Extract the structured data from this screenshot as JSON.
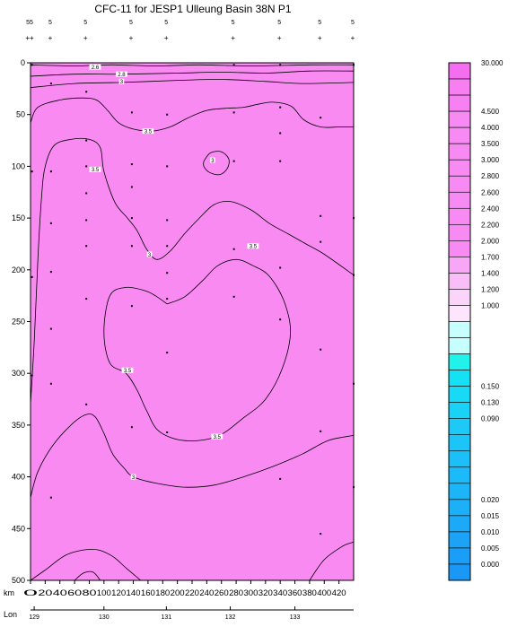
{
  "chart_data": {
    "type": "contour",
    "title": "CFC-11 for JESP1 Ulleung Basin 38N P1",
    "x_axis": {
      "label_km": "km",
      "label_lon": "Lon",
      "range": [
        0,
        440
      ],
      "ticks": [
        0,
        20,
        40,
        60,
        80,
        100,
        120,
        140,
        160,
        180,
        200,
        220,
        240,
        260,
        280,
        300,
        320,
        340,
        360,
        380,
        400,
        420
      ]
    },
    "lon_ticks": [
      {
        "km": 5,
        "label": "129"
      },
      {
        "km": 100,
        "label": "130"
      },
      {
        "km": 185,
        "label": "131"
      },
      {
        "km": 272,
        "label": "132"
      },
      {
        "km": 360,
        "label": "133"
      }
    ],
    "y_axis": {
      "range": [
        0,
        500
      ],
      "ticks": [
        0,
        50,
        100,
        150,
        200,
        250,
        300,
        350,
        400,
        450,
        500
      ],
      "inverted": true
    },
    "station_labels": [
      {
        "km": 0,
        "label": "55"
      },
      {
        "km": 28,
        "label": "5"
      },
      {
        "km": 76,
        "label": "5"
      },
      {
        "km": 138,
        "label": "5"
      },
      {
        "km": 186,
        "label": "5"
      },
      {
        "km": 277,
        "label": "5"
      },
      {
        "km": 340,
        "label": "5"
      },
      {
        "km": 395,
        "label": "5"
      },
      {
        "km": 440,
        "label": "5"
      }
    ],
    "contour_labels": [
      {
        "km": 88,
        "depth": 4,
        "label": "2.6"
      },
      {
        "km": 124,
        "depth": 11,
        "label": "2.8"
      },
      {
        "km": 124,
        "depth": 18,
        "label": "3"
      },
      {
        "km": 160,
        "depth": 66,
        "label": "3.5"
      },
      {
        "km": 88,
        "depth": 103,
        "label": "3.5"
      },
      {
        "km": 248,
        "depth": 94,
        "label": "3"
      },
      {
        "km": 162,
        "depth": 185,
        "label": "3"
      },
      {
        "km": 303,
        "depth": 177,
        "label": "3.5"
      },
      {
        "km": 132,
        "depth": 297,
        "label": "3.5"
      },
      {
        "km": 254,
        "depth": 361,
        "label": "3.5"
      },
      {
        "km": 140,
        "depth": 400,
        "label": "3"
      }
    ],
    "sample_points": [
      {
        "km": 2,
        "depth": 2
      },
      {
        "km": 2,
        "depth": 105
      },
      {
        "km": 2,
        "depth": 207
      },
      {
        "km": 2,
        "depth": 302
      },
      {
        "km": 28,
        "depth": 20
      },
      {
        "km": 28,
        "depth": 105
      },
      {
        "km": 28,
        "depth": 155
      },
      {
        "km": 28,
        "depth": 202
      },
      {
        "km": 28,
        "depth": 257
      },
      {
        "km": 28,
        "depth": 310
      },
      {
        "km": 28,
        "depth": 420
      },
      {
        "km": 76,
        "depth": 28
      },
      {
        "km": 76,
        "depth": 75
      },
      {
        "km": 76,
        "depth": 100
      },
      {
        "km": 76,
        "depth": 126
      },
      {
        "km": 76,
        "depth": 152
      },
      {
        "km": 76,
        "depth": 177
      },
      {
        "km": 76,
        "depth": 228
      },
      {
        "km": 76,
        "depth": 330
      },
      {
        "km": 138,
        "depth": 48
      },
      {
        "km": 138,
        "depth": 98
      },
      {
        "km": 138,
        "depth": 120
      },
      {
        "km": 138,
        "depth": 150
      },
      {
        "km": 138,
        "depth": 177
      },
      {
        "km": 138,
        "depth": 235
      },
      {
        "km": 138,
        "depth": 352
      },
      {
        "km": 186,
        "depth": 50
      },
      {
        "km": 186,
        "depth": 100
      },
      {
        "km": 186,
        "depth": 152
      },
      {
        "km": 186,
        "depth": 177
      },
      {
        "km": 186,
        "depth": 203
      },
      {
        "km": 186,
        "depth": 228
      },
      {
        "km": 186,
        "depth": 280
      },
      {
        "km": 186,
        "depth": 357
      },
      {
        "km": 277,
        "depth": 2
      },
      {
        "km": 277,
        "depth": 48
      },
      {
        "km": 277,
        "depth": 95
      },
      {
        "km": 277,
        "depth": 180
      },
      {
        "km": 277,
        "depth": 226
      },
      {
        "km": 340,
        "depth": 2
      },
      {
        "km": 340,
        "depth": 43
      },
      {
        "km": 340,
        "depth": 68
      },
      {
        "km": 340,
        "depth": 95
      },
      {
        "km": 340,
        "depth": 198
      },
      {
        "km": 340,
        "depth": 248
      },
      {
        "km": 340,
        "depth": 402
      },
      {
        "km": 395,
        "depth": 53
      },
      {
        "km": 395,
        "depth": 148
      },
      {
        "km": 395,
        "depth": 173
      },
      {
        "km": 395,
        "depth": 277
      },
      {
        "km": 395,
        "depth": 356
      },
      {
        "km": 395,
        "depth": 455
      },
      {
        "km": 440,
        "depth": 2
      },
      {
        "km": 440,
        "depth": 150
      },
      {
        "km": 440,
        "depth": 205
      },
      {
        "km": 440,
        "depth": 310
      },
      {
        "km": 440,
        "depth": 410
      }
    ],
    "contours": [
      {
        "level": "2.6",
        "points": [
          [
            0,
            2
          ],
          [
            60,
            3
          ],
          [
            110,
            2
          ],
          [
            170,
            3
          ],
          [
            230,
            2
          ],
          [
            300,
            3
          ],
          [
            380,
            2
          ],
          [
            440,
            2
          ]
        ]
      },
      {
        "level": "2.8",
        "points": [
          [
            0,
            13
          ],
          [
            60,
            11
          ],
          [
            124,
            11
          ],
          [
            200,
            10
          ],
          [
            260,
            9
          ],
          [
            320,
            10
          ],
          [
            380,
            8
          ],
          [
            440,
            8
          ]
        ]
      },
      {
        "level": "3",
        "points": [
          [
            0,
            24
          ],
          [
            60,
            20
          ],
          [
            124,
            19
          ],
          [
            200,
            17
          ],
          [
            260,
            16
          ],
          [
            320,
            18
          ],
          [
            370,
            20
          ],
          [
            440,
            19
          ]
        ]
      },
      {
        "level": "3.5a",
        "points": [
          [
            0,
            58
          ],
          [
            10,
            43
          ],
          [
            40,
            36
          ],
          [
            70,
            34
          ],
          [
            90,
            36
          ],
          [
            105,
            46
          ],
          [
            120,
            58
          ],
          [
            140,
            64
          ],
          [
            165,
            66
          ],
          [
            190,
            62
          ],
          [
            215,
            53
          ],
          [
            240,
            46
          ],
          [
            265,
            44
          ],
          [
            290,
            43
          ],
          [
            310,
            40
          ],
          [
            330,
            38
          ],
          [
            355,
            42
          ],
          [
            372,
            55
          ],
          [
            395,
            62
          ],
          [
            420,
            62
          ],
          [
            440,
            62
          ]
        ]
      },
      {
        "level": "3.5b",
        "points": [
          [
            0,
            330
          ],
          [
            5,
            270
          ],
          [
            10,
            190
          ],
          [
            15,
            130
          ],
          [
            20,
            100
          ],
          [
            32,
            80
          ],
          [
            55,
            74
          ],
          [
            80,
            74
          ],
          [
            95,
            82
          ],
          [
            100,
            105
          ],
          [
            115,
            135
          ],
          [
            132,
            150
          ],
          [
            145,
            162
          ],
          [
            158,
            180
          ],
          [
            172,
            190
          ],
          [
            190,
            182
          ],
          [
            210,
            165
          ],
          [
            230,
            150
          ],
          [
            250,
            137
          ],
          [
            272,
            134
          ],
          [
            300,
            142
          ],
          [
            325,
            155
          ],
          [
            350,
            165
          ],
          [
            375,
            175
          ],
          [
            400,
            185
          ],
          [
            440,
            205
          ]
        ]
      },
      {
        "level": "3b",
        "points": [
          [
            236,
            95
          ],
          [
            245,
            87
          ],
          [
            260,
            86
          ],
          [
            270,
            93
          ],
          [
            268,
            102
          ],
          [
            258,
            108
          ],
          [
            244,
            106
          ],
          [
            236,
            100
          ],
          [
            236,
            95
          ]
        ]
      },
      {
        "level": "3.5c",
        "points": [
          [
            186,
            233
          ],
          [
            170,
            225
          ],
          [
            155,
            220
          ],
          [
            130,
            217
          ],
          [
            108,
            225
          ],
          [
            100,
            260
          ],
          [
            108,
            290
          ],
          [
            130,
            300
          ],
          [
            145,
            316
          ],
          [
            158,
            336
          ],
          [
            175,
            356
          ],
          [
            210,
            365
          ],
          [
            254,
            361
          ],
          [
            290,
            343
          ],
          [
            320,
            325
          ],
          [
            343,
            295
          ],
          [
            354,
            260
          ],
          [
            345,
            230
          ],
          [
            325,
            206
          ],
          [
            303,
            196
          ],
          [
            280,
            190
          ],
          [
            255,
            196
          ],
          [
            235,
            210
          ],
          [
            210,
            226
          ],
          [
            186,
            233
          ]
        ]
      },
      {
        "level": "3c",
        "points": [
          [
            0,
            420
          ],
          [
            10,
            395
          ],
          [
            30,
            370
          ],
          [
            55,
            350
          ],
          [
            75,
            340
          ],
          [
            88,
            342
          ],
          [
            100,
            358
          ],
          [
            112,
            378
          ],
          [
            128,
            392
          ],
          [
            140,
            400
          ],
          [
            170,
            406
          ],
          [
            210,
            410
          ],
          [
            250,
            408
          ],
          [
            290,
            400
          ],
          [
            330,
            390
          ],
          [
            370,
            378
          ],
          [
            405,
            365
          ],
          [
            440,
            360
          ]
        ]
      },
      {
        "level": "3d",
        "points": [
          [
            0,
            500
          ],
          [
            20,
            490
          ],
          [
            50,
            475
          ],
          [
            85,
            470
          ],
          [
            110,
            476
          ],
          [
            130,
            488
          ],
          [
            150,
            500
          ]
        ]
      },
      {
        "level": "3e",
        "points": [
          [
            60,
            500
          ],
          [
            72,
            493
          ],
          [
            85,
            492
          ],
          [
            95,
            500
          ]
        ]
      },
      {
        "level": "3f",
        "points": [
          [
            380,
            500
          ],
          [
            400,
            480
          ],
          [
            425,
            467
          ],
          [
            440,
            463
          ]
        ]
      }
    ],
    "colorbar": {
      "labels": [
        "30.000",
        "",
        "",
        "4.500",
        "4.000",
        "3.500",
        "3.000",
        "2.800",
        "2.600",
        "2.400",
        "2.200",
        "2.000",
        "1.700",
        "1.400",
        "1.200",
        "1.000",
        "",
        "",
        "",
        "",
        "0.150",
        "0.130",
        "0.090",
        "",
        "",
        "",
        "",
        "0.020",
        "0.015",
        "0.010",
        "0.005",
        "0.000"
      ],
      "colors": [
        "#f66ef0",
        "#f77ff2",
        "#f780f2",
        "#f78af3",
        "#f78af3",
        "#f78af3",
        "#f78af3",
        "#f78af3",
        "#f78af3",
        "#f78af3",
        "#f78af3",
        "#f78af3",
        "#f7a7f5",
        "#f9bdf7",
        "#fbd4fa",
        "#fde6fd",
        "#c6fffe",
        "#c6fffe",
        "#21f2ea",
        "#16e0f4",
        "#18d9f6",
        "#1ad2f7",
        "#1cc9f7",
        "#1cc4f8",
        "#1cbff8",
        "#1cbaf8",
        "#1cb5f8",
        "#1cb0f8",
        "#1ca9f8",
        "#1ca3f8",
        "#1a9ef8",
        "#1a98f6"
      ]
    },
    "field_color": "#f88af2"
  }
}
